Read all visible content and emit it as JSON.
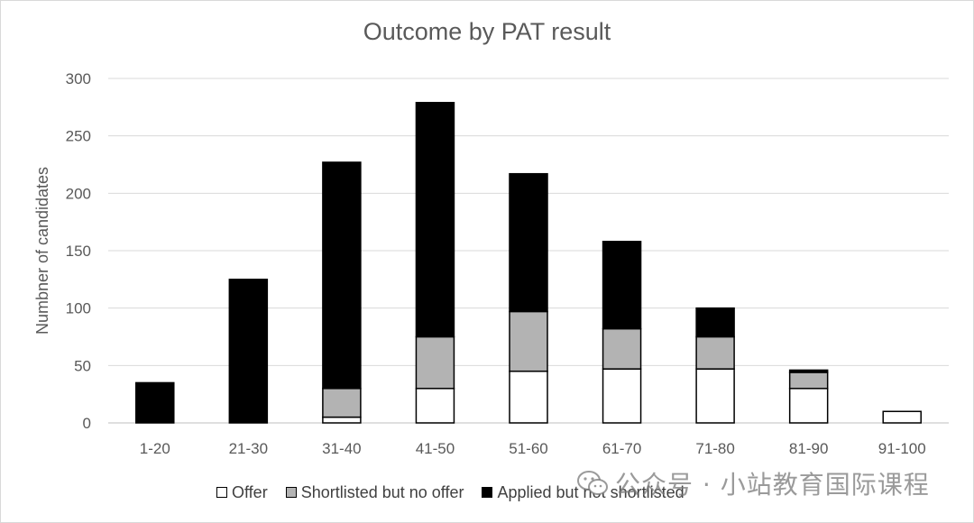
{
  "chart_data": {
    "type": "bar",
    "stacked": true,
    "title": "Outcome by PAT result",
    "xlabel": "",
    "ylabel": "Numbner of candidates",
    "ylim": [
      0,
      300
    ],
    "yticks": [
      0,
      50,
      100,
      150,
      200,
      250,
      300
    ],
    "grid": true,
    "legend_position": "bottom",
    "categories": [
      "1-20",
      "21-30",
      "31-40",
      "41-50",
      "51-60",
      "61-70",
      "71-80",
      "81-90",
      "91-100"
    ],
    "series": [
      {
        "name": "Offer",
        "color": "#ffffff",
        "values": [
          0,
          0,
          5,
          30,
          45,
          47,
          47,
          30,
          10
        ]
      },
      {
        "name": "Shortlisted but no offer",
        "color": "#b3b3b3",
        "values": [
          0,
          0,
          25,
          45,
          52,
          35,
          28,
          14,
          0
        ]
      },
      {
        "name": "Applied but not shortlisted",
        "color": "#000000",
        "values": [
          35,
          125,
          197,
          204,
          120,
          76,
          25,
          2,
          0
        ]
      }
    ]
  },
  "watermark": {
    "text": "公众号 · 小站教育国际课程",
    "icon": "wechat-icon"
  }
}
